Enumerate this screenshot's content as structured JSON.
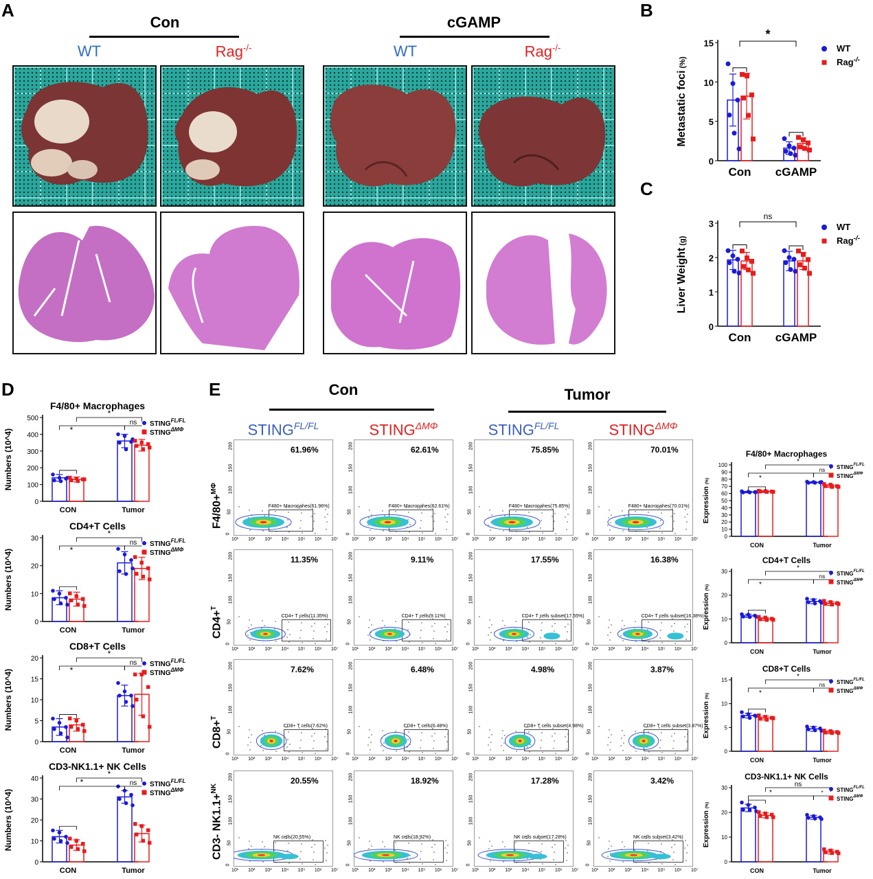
{
  "panels": {
    "A": "A",
    "B": "B",
    "C": "C",
    "D": "D",
    "E": "E"
  },
  "panelA": {
    "group_con": "Con",
    "group_cgamp": "cGAMP",
    "wt": "WT",
    "rag": "Rag",
    "rag_sup": "-/-"
  },
  "panelE": {
    "group_con": "Con",
    "group_tumor": "Tumor",
    "col_headers": [
      {
        "text": "STING",
        "sup": "FL/FL",
        "color": "#3a5fbf"
      },
      {
        "text": "STING",
        "sup": "ΔMΦ",
        "color": "#e02020"
      },
      {
        "text": "STING",
        "sup": "FL/FL",
        "color": "#3a5fbf"
      },
      {
        "text": "STING",
        "sup": "ΔMΦ",
        "color": "#e02020"
      }
    ],
    "row_labels": [
      {
        "text": "F4/80+",
        "sup": "MΦ"
      },
      {
        "text": "CD4+",
        "sup": "T"
      },
      {
        "text": "CD8+",
        "sup": "T"
      },
      {
        "text": "CD3- NK1.1+",
        "sup": "NK"
      }
    ],
    "percents": [
      [
        "61.96%",
        "62.61%",
        "75.85%",
        "70.01%"
      ],
      [
        "11.35%",
        "9.11%",
        "17.55%",
        "16.38%"
      ],
      [
        "7.62%",
        "6.48%",
        "4.98%",
        "3.87%"
      ],
      [
        "20.55%",
        "18.92%",
        "17.28%",
        "3.42%"
      ]
    ],
    "gates": [
      [
        "F480+ Macropahes(61.96%)",
        "F480+ Macropahes(62.61%)",
        "F480+ Macropahes(75.85%)",
        "F480+ Macropahes(70.01%)"
      ],
      [
        "CD4+ T cells(11.35%)",
        "CD4+ T cells(9.11%)",
        "CD4+ T cells subset(17.55%)",
        "CD4+ T cells subset(16.38%)"
      ],
      [
        "CD8+ T cells(7.62%)",
        "CD8+ T cells(6.48%)",
        "CD8+ T cells subset(4.98%)",
        "CD8+ T cells subset(3.87%)"
      ],
      [
        "NK cells(20.55%)",
        "NK cells(18.92%)",
        "NK cells subset(17.28%)",
        "NK cells subset(3.42%)"
      ]
    ],
    "yticks": [
      "0",
      "50",
      "100",
      "150",
      "200"
    ],
    "xticks": [
      "10¹",
      "10²",
      "10³",
      "10⁴",
      "10⁵",
      "10⁶",
      "10⁷"
    ]
  },
  "chart_data": [
    {
      "id": "B",
      "type": "bar",
      "categories": [
        "Con",
        "cGAMP"
      ],
      "ylabel": "Metastatic foci",
      "ylabel_unit": "(%)",
      "ylim": [
        0,
        15
      ],
      "yticks": [
        0,
        5,
        10,
        15
      ],
      "series": [
        {
          "name": "WT",
          "color": "#1a1adb",
          "values": [
            7.7,
            1.6
          ],
          "sd": [
            3.3,
            0.8
          ],
          "points": [
            [
              12.3,
              9.8,
              7.7,
              5.8,
              3.5,
              1.5
            ],
            [
              2.8,
              1.9,
              1.6,
              1.2,
              0.9,
              0.7
            ]
          ]
        },
        {
          "name": "Rag",
          "name_sup": "-/-",
          "color": "#e81c1c",
          "values": [
            8.2,
            2.2
          ],
          "sd": [
            2.9,
            0.7
          ],
          "points": [
            [
              11.0,
              10.8,
              8.4,
              8.0,
              5.8,
              2.8
            ],
            [
              3.0,
              2.7,
              2.3,
              1.8,
              1.6,
              1.4
            ]
          ]
        }
      ],
      "annotations": [
        {
          "text": "*",
          "between": "groups"
        }
      ]
    },
    {
      "id": "C",
      "type": "bar",
      "categories": [
        "Con",
        "cGAMP"
      ],
      "ylabel": "Liver Weight",
      "ylabel_unit": "(g)",
      "ylim": [
        0,
        3
      ],
      "yticks": [
        0,
        1,
        2,
        3
      ],
      "series": [
        {
          "name": "WT",
          "color": "#1a1adb",
          "values": [
            1.93,
            1.9
          ],
          "sd": [
            0.28,
            0.28
          ],
          "points": [
            [
              2.2,
              2.05,
              1.95,
              1.85,
              1.6,
              1.55
            ],
            [
              2.2,
              2.0,
              1.95,
              1.85,
              1.65,
              1.6
            ]
          ]
        },
        {
          "name": "Rag",
          "name_sup": "-/-",
          "color": "#e81c1c",
          "values": [
            1.9,
            1.9
          ],
          "sd": [
            0.25,
            0.25
          ],
          "points": [
            [
              2.2,
              2.0,
              1.9,
              1.75,
              1.65,
              1.55
            ],
            [
              2.2,
              2.1,
              1.95,
              1.8,
              1.7,
              1.55
            ]
          ]
        }
      ],
      "annotations": [
        {
          "text": "ns",
          "between": "groups"
        }
      ]
    },
    {
      "id": "D1",
      "type": "bar",
      "title": "F4/80+ Macrophages",
      "categories": [
        "CON",
        "Tumor"
      ],
      "ylabel": "Numbers (10^4)",
      "ylim": [
        0,
        500
      ],
      "yticks": [
        0,
        100,
        200,
        300,
        400,
        500
      ],
      "series": [
        {
          "name": "STING",
          "name_sup": "FL/FL",
          "color": "#1a1adb",
          "values": [
            140,
            360
          ],
          "sd": [
            20,
            40
          ],
          "points": [
            [
              160,
              140,
              135,
              125,
              120,
              140
            ],
            [
              400,
              390,
              355,
              350,
              310,
              370
            ]
          ]
        },
        {
          "name": "STING",
          "name_sup": "ΔMΦ",
          "color": "#e81c1c",
          "values": [
            130,
            335
          ],
          "sd": [
            15,
            35
          ],
          "points": [
            [
              140,
              135,
              130,
              125,
              120,
              130
            ],
            [
              360,
              350,
              340,
              330,
              310,
              320
            ]
          ]
        }
      ],
      "annotations": [
        "*",
        "*",
        "ns"
      ]
    },
    {
      "id": "D2",
      "type": "bar",
      "title": "CD4+T Cells",
      "categories": [
        "CON",
        "Tumor"
      ],
      "ylabel": "Numbers (10^4)",
      "ylim": [
        0,
        30
      ],
      "yticks": [
        0,
        10,
        20,
        30
      ],
      "series": [
        {
          "name": "STING",
          "name_sup": "FL/FL",
          "color": "#1a1adb",
          "values": [
            8.5,
            21
          ],
          "sd": [
            2.5,
            4
          ],
          "points": [
            [
              11,
              10,
              8.5,
              8,
              6.5,
              6
            ],
            [
              26,
              24,
              22,
              18,
              17,
              19
            ]
          ]
        },
        {
          "name": "STING",
          "name_sup": "ΔMΦ",
          "color": "#e81c1c",
          "values": [
            8,
            19
          ],
          "sd": [
            2.5,
            4
          ],
          "points": [
            [
              10,
              9,
              8,
              7.5,
              6,
              5.5
            ],
            [
              23,
              21,
              19,
              17,
              16,
              15
            ]
          ]
        }
      ],
      "annotations": [
        "*",
        "*",
        "ns"
      ]
    },
    {
      "id": "D3",
      "type": "bar",
      "title": "CD8+T Cells",
      "categories": [
        "CON",
        "Tumor"
      ],
      "ylabel": "Numbers (10^4)",
      "ylim": [
        0,
        20
      ],
      "yticks": [
        0,
        5,
        10,
        15,
        20
      ],
      "series": [
        {
          "name": "STING",
          "name_sup": "FL/FL",
          "color": "#1a1adb",
          "values": [
            3.5,
            11
          ],
          "sd": [
            2,
            2.5
          ],
          "points": [
            [
              5.5,
              4.5,
              3.5,
              3,
              2,
              1
            ],
            [
              14,
              12,
              11,
              11,
              9.5,
              8.5
            ]
          ]
        },
        {
          "name": "STING",
          "name_sup": "ΔMΦ",
          "color": "#e81c1c",
          "values": [
            4,
            11.3
          ],
          "sd": [
            1.5,
            5
          ],
          "points": [
            [
              5.5,
              5,
              4,
              3.5,
              3,
              2.5
            ],
            [
              16,
              16,
              13,
              10,
              6,
              3.5
            ]
          ]
        }
      ],
      "annotations": [
        "*",
        "*",
        "ns"
      ]
    },
    {
      "id": "D4",
      "type": "bar",
      "title": "CD3-NK1.1+ NK Cells",
      "categories": [
        "CON",
        "Tumor"
      ],
      "ylabel": "Numbers (10^4)",
      "ylim": [
        0,
        40
      ],
      "yticks": [
        0,
        10,
        20,
        30,
        40
      ],
      "series": [
        {
          "name": "STING",
          "name_sup": "FL/FL",
          "color": "#1a1adb",
          "values": [
            12,
            31
          ],
          "sd": [
            3,
            3
          ],
          "points": [
            [
              15,
              14,
              12,
              11,
              10,
              9
            ],
            [
              36,
              34,
              32,
              30,
              28,
              27
            ]
          ]
        },
        {
          "name": "STING",
          "name_sup": "ΔMΦ",
          "color": "#e81c1c",
          "values": [
            8,
            13.5
          ],
          "sd": [
            2.5,
            4
          ],
          "points": [
            [
              11,
              10,
              8.5,
              7,
              6,
              5
            ],
            [
              18,
              17,
              15,
              13,
              10,
              9
            ]
          ]
        }
      ],
      "annotations": [
        "*",
        "*",
        "ns"
      ]
    },
    {
      "id": "E1",
      "type": "bar",
      "title": "F4/80+ Macrophages",
      "categories": [
        "CON",
        "Tumor"
      ],
      "ylabel": "Expression",
      "ylabel_unit": "(%)",
      "ylim": [
        0,
        100
      ],
      "yticks": [
        0,
        10,
        20,
        30,
        40,
        50,
        60,
        70,
        80,
        90,
        100
      ],
      "series": [
        {
          "name": "STING",
          "name_sup": "FL/FL",
          "color": "#1a1adb",
          "values": [
            62,
            75.5
          ],
          "sd": [
            1,
            1
          ],
          "points": [
            [
              63,
              62.5,
              62,
              61.5,
              61.5,
              62
            ],
            [
              76.5,
              76,
              75.5,
              75,
              75,
              76
            ]
          ]
        },
        {
          "name": "STING",
          "name_sup": "ΔMΦ",
          "color": "#e81c1c",
          "values": [
            62.6,
            70.5
          ],
          "sd": [
            1,
            2
          ],
          "points": [
            [
              63.5,
              63,
              62.5,
              62.5,
              62,
              62
            ],
            [
              73,
              72,
              70,
              70,
              69,
              69
            ]
          ]
        }
      ],
      "annotations": [
        "*",
        "*",
        "ns"
      ]
    },
    {
      "id": "E2",
      "type": "bar",
      "title": "CD4+T Cells",
      "categories": [
        "CON",
        "Tumor"
      ],
      "ylabel": "Expression",
      "ylabel_unit": "(%)",
      "ylim": [
        0,
        30
      ],
      "yticks": [
        0,
        10,
        20,
        30
      ],
      "series": [
        {
          "name": "STING",
          "name_sup": "FL/FL",
          "color": "#1a1adb",
          "values": [
            11.3,
            17.4
          ],
          "sd": [
            0.7,
            1
          ],
          "points": [
            [
              12,
              11.8,
              11.4,
              11,
              10.8,
              11
            ],
            [
              18.5,
              18,
              17.5,
              17,
              16.5,
              16.8
            ]
          ]
        },
        {
          "name": "STING",
          "name_sup": "ΔMΦ",
          "color": "#e81c1c",
          "values": [
            10,
            16.5
          ],
          "sd": [
            0.6,
            0.8
          ],
          "points": [
            [
              10.8,
              10.5,
              10,
              9.8,
              9.5,
              9.6
            ],
            [
              17.5,
              17,
              16.6,
              16.3,
              16,
              16.2
            ]
          ]
        }
      ],
      "annotations": [
        "*",
        "*",
        "ns"
      ]
    },
    {
      "id": "E3",
      "type": "bar",
      "title": "CD8+T Cells",
      "categories": [
        "CON",
        "Tumor"
      ],
      "ylabel": "Expression",
      "ylabel_unit": "(%)",
      "ylim": [
        0,
        15
      ],
      "yticks": [
        0,
        5,
        10,
        15
      ],
      "series": [
        {
          "name": "STING",
          "name_sup": "FL/FL",
          "color": "#1a1adb",
          "values": [
            7.5,
            4.7
          ],
          "sd": [
            0.5,
            0.5
          ],
          "points": [
            [
              8.2,
              7.8,
              7.5,
              7.3,
              7,
              7.4
            ],
            [
              5.2,
              5,
              4.8,
              4.6,
              4.4,
              4.3
            ]
          ]
        },
        {
          "name": "STING",
          "name_sup": "ΔMΦ",
          "color": "#e81c1c",
          "values": [
            7,
            4
          ],
          "sd": [
            0.4,
            0.3
          ],
          "points": [
            [
              7.5,
              7.2,
              7,
              6.8,
              6.6,
              6.9
            ],
            [
              4.3,
              4.2,
              4,
              3.9,
              3.8,
              3.8
            ]
          ]
        }
      ],
      "annotations": [
        "*",
        "*",
        "ns"
      ]
    },
    {
      "id": "E4",
      "type": "bar",
      "title": "CD3-NK1.1+ NK Cells",
      "categories": [
        "CON",
        "Tumor"
      ],
      "ylabel": "Expression",
      "ylabel_unit": "(%)",
      "ylim": [
        0,
        30
      ],
      "yticks": [
        0,
        10,
        20,
        30
      ],
      "series": [
        {
          "name": "STING",
          "name_sup": "FL/FL",
          "color": "#1a1adb",
          "values": [
            21.8,
            18
          ],
          "sd": [
            1.5,
            0.8
          ],
          "points": [
            [
              24,
              23,
              22,
              21,
              21,
              20.5
            ],
            [
              19,
              18.5,
              18,
              17.8,
              17.5,
              17.3
            ]
          ]
        },
        {
          "name": "STING",
          "name_sup": "ΔMΦ",
          "color": "#e81c1c",
          "values": [
            18.8,
            4
          ],
          "sd": [
            1,
            0.8
          ],
          "points": [
            [
              20,
              19.5,
              19,
              18.5,
              18,
              18
            ],
            [
              5,
              4.5,
              4,
              3.8,
              3.5,
              3.4
            ]
          ]
        }
      ],
      "annotations": [
        "ns",
        "*",
        "*"
      ]
    }
  ]
}
